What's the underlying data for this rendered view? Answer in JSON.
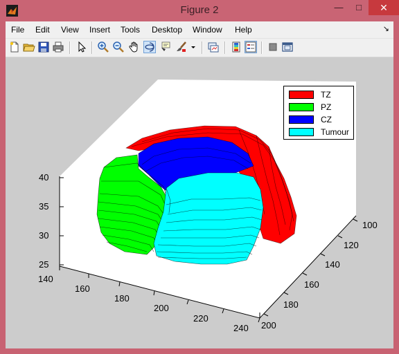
{
  "window": {
    "title": "Figure 2",
    "minimize_glyph": "—",
    "maximize_glyph": "□",
    "close_glyph": "✕"
  },
  "menu": {
    "items": [
      "File",
      "Edit",
      "View",
      "Insert",
      "Tools",
      "Desktop",
      "Window",
      "Help"
    ],
    "dock_glyph": "↘"
  },
  "toolbar": {
    "buttons": [
      {
        "icon": "new-figure-icon"
      },
      {
        "icon": "open-file-icon"
      },
      {
        "icon": "save-icon"
      },
      {
        "icon": "print-icon"
      },
      {
        "icon": "edit-plot-arrow-icon"
      },
      {
        "icon": "zoom-in-icon"
      },
      {
        "icon": "zoom-out-icon"
      },
      {
        "icon": "pan-hand-icon"
      },
      {
        "icon": "rotate-3d-icon",
        "active": true
      },
      {
        "icon": "data-cursor-icon"
      },
      {
        "icon": "brush-icon"
      },
      {
        "icon": "brush-dropdown-icon"
      },
      {
        "icon": "link-plot-icon"
      },
      {
        "icon": "insert-colorbar-icon"
      },
      {
        "icon": "insert-legend-icon",
        "active": true
      },
      {
        "icon": "hide-plot-tools-icon"
      },
      {
        "icon": "show-plot-tools-icon"
      }
    ]
  },
  "plot": {
    "legend": [
      {
        "label": "TZ",
        "color": "#ff0000"
      },
      {
        "label": "PZ",
        "color": "#00ff00"
      },
      {
        "label": "CZ",
        "color": "#0000ff"
      },
      {
        "label": "Tumour",
        "color": "#00ffff"
      }
    ],
    "z_ticks": [
      "40",
      "35",
      "30",
      "25"
    ],
    "x_ticks": [
      "140",
      "160",
      "180",
      "200",
      "220",
      "240"
    ],
    "y_ticks": [
      "100",
      "120",
      "140",
      "160",
      "180",
      "200"
    ],
    "view": "3-D surface of stacked contour slices",
    "colors": {
      "background": "#cccccc",
      "axes": "#ffffff"
    }
  }
}
